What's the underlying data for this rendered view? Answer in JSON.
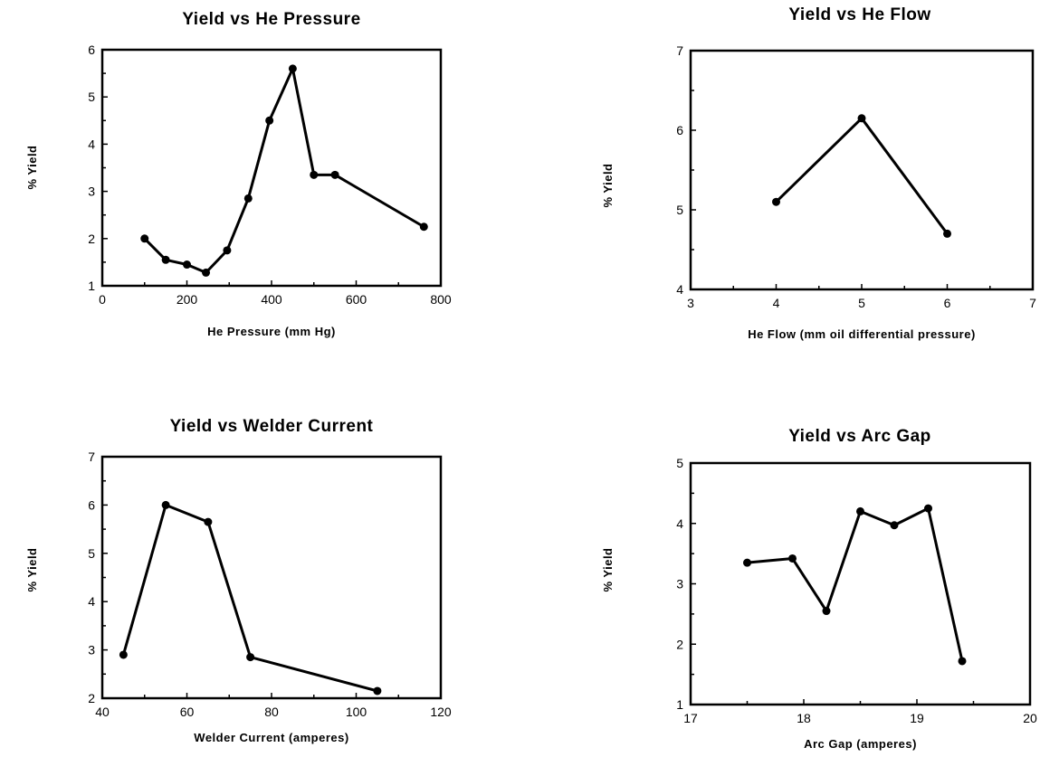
{
  "chart_data": [
    {
      "type": "line",
      "title": "Yield vs He Pressure",
      "xlabel": "He Pressure (mm Hg)",
      "ylabel": "% Yield",
      "xlim": [
        0,
        800
      ],
      "ylim": [
        1,
        6
      ],
      "xticks": [
        0,
        200,
        400,
        600,
        800
      ],
      "yticks": [
        1,
        2,
        3,
        4,
        5,
        6
      ],
      "x": [
        100,
        150,
        200,
        245,
        295,
        345,
        395,
        450,
        500,
        550,
        760
      ],
      "y": [
        2.0,
        1.55,
        1.45,
        1.28,
        1.75,
        2.85,
        4.5,
        5.6,
        3.35,
        3.35,
        2.25
      ]
    },
    {
      "type": "line",
      "title": "Yield vs He Flow",
      "xlabel": "He Flow (mm oil differential pressure)",
      "ylabel": "% Yield",
      "xlim": [
        3,
        7
      ],
      "ylim": [
        4,
        7
      ],
      "xticks": [
        3,
        4,
        5,
        6,
        7
      ],
      "yticks": [
        4,
        5,
        6,
        7
      ],
      "x": [
        4,
        5,
        6
      ],
      "y": [
        5.1,
        6.15,
        4.7
      ]
    },
    {
      "type": "line",
      "title": "Yield vs Welder Current",
      "xlabel": "Welder Current (amperes)",
      "ylabel": "% Yield",
      "xlim": [
        40,
        120
      ],
      "ylim": [
        2,
        7
      ],
      "xticks": [
        40,
        60,
        80,
        100,
        120
      ],
      "yticks": [
        2,
        3,
        4,
        5,
        6,
        7
      ],
      "x": [
        45,
        55,
        65,
        75,
        105
      ],
      "y": [
        2.9,
        6.0,
        5.65,
        2.85,
        2.15
      ]
    },
    {
      "type": "line",
      "title": "Yield vs Arc Gap",
      "xlabel": "Arc Gap (amperes)",
      "ylabel": "% Yield",
      "xlim": [
        17,
        20
      ],
      "ylim": [
        1,
        5
      ],
      "xticks": [
        17,
        18,
        19,
        20
      ],
      "yticks": [
        1,
        2,
        3,
        4,
        5
      ],
      "x": [
        17.5,
        17.9,
        18.2,
        18.5,
        18.8,
        19.1,
        19.4
      ],
      "y": [
        3.35,
        3.42,
        2.55,
        4.2,
        3.97,
        4.25,
        1.72
      ]
    }
  ]
}
